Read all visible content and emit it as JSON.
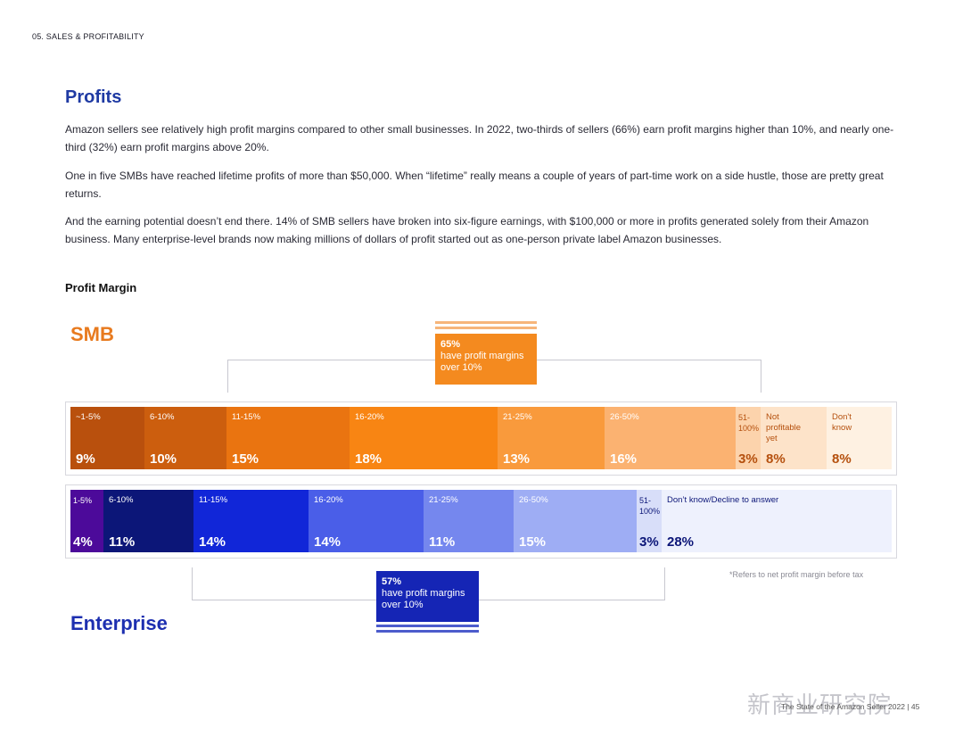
{
  "header": {
    "section": "05. SALES & PROFITABILITY"
  },
  "title": "Profits",
  "paragraphs": [
    "Amazon sellers see relatively high profit margins compared to other small businesses. In 2022, two-thirds of sellers (66%) earn profit margins higher than 10%, and nearly one-third (32%) earn profit margins above 20%.",
    "One in five SMBs have reached lifetime profits of more than $50,000. When “lifetime” really means a couple of years of part-time work on a side hustle, those are pretty great returns.",
    "And the earning potential doesn’t end there. 14% of SMB sellers have broken into six-figure earnings, with $100,000 or more in profits generated solely from their Amazon business. Many enterprise-level brands now making millions of dollars of profit started out as one-person private label Amazon businesses."
  ],
  "chart_title": "Profit Margin",
  "groups": {
    "smb": {
      "label": "SMB",
      "color": "#e87a1e"
    },
    "enterprise": {
      "label": "Enterprise",
      "color": "#1d2fb0"
    }
  },
  "callouts": {
    "smb": {
      "value": "65%",
      "text": "have profit margins over 10%",
      "color": "#f48a1f",
      "stripe": "#f6b57a"
    },
    "enterprise": {
      "value": "57%",
      "text": "have profit margins over 10%",
      "color": "#1525b5",
      "stripe": "#4c5ccc"
    }
  },
  "chart_data": {
    "type": "bar",
    "stacked": true,
    "orientation": "horizontal",
    "title": "Profit Margin",
    "series": [
      {
        "name": "SMB",
        "categories": [
          "~1-5%",
          "6-10%",
          "11-15%",
          "16-20%",
          "21-25%",
          "26-50%",
          "51-100%",
          "Not profitable yet",
          "Don't know"
        ],
        "values": [
          9,
          10,
          15,
          18,
          13,
          16,
          3,
          8,
          8
        ],
        "display": [
          {
            "label": "~1-5%",
            "value": "9%",
            "color": "#b9500d",
            "text": "#ffffff"
          },
          {
            "label": "6-10%",
            "value": "10%",
            "color": "#cc5e0e",
            "text": "#ffffff"
          },
          {
            "label": "11-15%",
            "value": "15%",
            "color": "#ea7410",
            "text": "#ffffff"
          },
          {
            "label": "16-20%",
            "value": "18%",
            "color": "#f88513",
            "text": "#ffffff"
          },
          {
            "label": "21-25%",
            "value": "13%",
            "color": "#f99a3c",
            "text": "#ffffff"
          },
          {
            "label": "26-50%",
            "value": "16%",
            "color": "#fbb271",
            "text": "#ffffff"
          },
          {
            "label": "51-\n100%",
            "value": "3%",
            "color": "#fcd3ac",
            "text": "#b5500e"
          },
          {
            "label": "Not\nprofitable\nyet",
            "value": "8%",
            "color": "#fde3c9",
            "text": "#b5500e"
          },
          {
            "label": "Don't\nknow",
            "value": "8%",
            "color": "#fef1e2",
            "text": "#b5500e"
          }
        ]
      },
      {
        "name": "Enterprise",
        "categories": [
          "1-5%",
          "6-10%",
          "11-15%",
          "16-20%",
          "21-25%",
          "26-50%",
          "51-100%",
          "Don't know/Decline to answer"
        ],
        "values": [
          4,
          11,
          14,
          14,
          11,
          15,
          3,
          28
        ],
        "display": [
          {
            "label": "1-5%",
            "value": "4%",
            "color": "#4c0a9a",
            "text": "#ffffff"
          },
          {
            "label": "6-10%",
            "value": "11%",
            "color": "#0c1678",
            "text": "#ffffff"
          },
          {
            "label": "11-15%",
            "value": "14%",
            "color": "#1126d8",
            "text": "#ffffff"
          },
          {
            "label": "16-20%",
            "value": "14%",
            "color": "#4a5ee8",
            "text": "#ffffff"
          },
          {
            "label": "21-25%",
            "value": "11%",
            "color": "#7587ee",
            "text": "#ffffff"
          },
          {
            "label": "26-50%",
            "value": "15%",
            "color": "#9eadf4",
            "text": "#ffffff"
          },
          {
            "label": "51-\n100%",
            "value": "3%",
            "color": "#d8def9",
            "text": "#0c1678"
          },
          {
            "label": "Don’t know/Decline to answer",
            "value": "28%",
            "color": "#eef1fd",
            "text": "#0c1678"
          }
        ]
      }
    ]
  },
  "footnote": "*Refers to net profit margin before tax",
  "footer": {
    "page_text": "The State of the Amazon Seller 2022 | 45",
    "watermark": "新商业研究院"
  }
}
